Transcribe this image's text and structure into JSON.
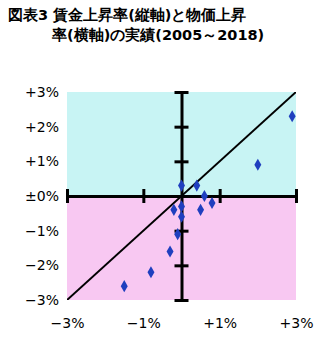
{
  "chart_data": {
    "type": "scatter",
    "title": [
      "図表3 賃金上昇率(縦軸)と物価上昇",
      "率(横軸)の実績(2005～2018)"
    ],
    "x": [
      2.9,
      2.0,
      0.0,
      0.4,
      0.6,
      0.8,
      0.5,
      -0.2,
      0.0,
      0.0,
      -0.1,
      -0.3,
      -0.8,
      -1.5
    ],
    "values": [
      2.3,
      0.9,
      0.3,
      0.3,
      0.0,
      -0.2,
      -0.4,
      -0.4,
      -0.3,
      -0.6,
      -1.1,
      -1.6,
      -2.2,
      -2.6
    ],
    "color": "#1f3fbf",
    "marker": "diamond",
    "grid": false,
    "xlim": [
      -3,
      3
    ],
    "ylim": [
      -3,
      3
    ],
    "xticks": [
      {
        "value": -3,
        "label": "−3%"
      },
      {
        "value": -1,
        "label": "−1%"
      },
      {
        "value": 1,
        "label": "+1%"
      },
      {
        "value": 3,
        "label": "+3%"
      }
    ],
    "yticks": [
      {
        "value": -3,
        "label": "−3%"
      },
      {
        "value": -2,
        "label": "−2%"
      },
      {
        "value": -1,
        "label": "−1%"
      },
      {
        "value": 0,
        "label": "±0%"
      },
      {
        "value": 1,
        "label": "+1%"
      },
      {
        "value": 2,
        "label": "+2%"
      },
      {
        "value": 3,
        "label": "+3%"
      }
    ]
  }
}
